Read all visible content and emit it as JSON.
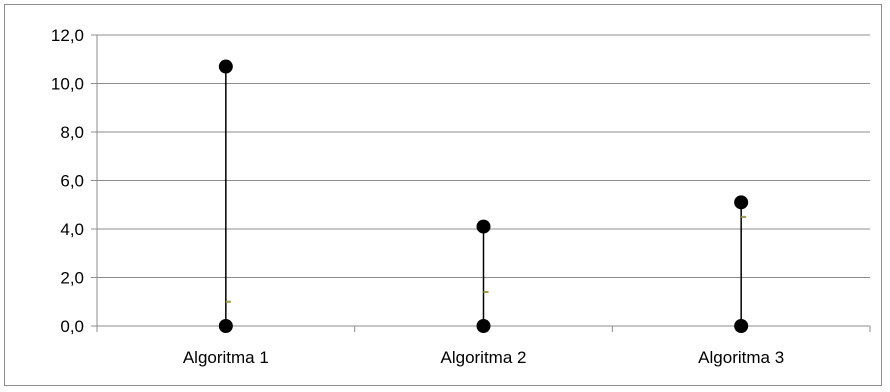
{
  "chart_data": {
    "type": "high-low",
    "title": "",
    "xlabel": "",
    "ylabel": "",
    "categories": [
      "Algoritma 1",
      "Algoritma 2",
      "Algoritma 3"
    ],
    "series": [
      {
        "values": [
          10.7,
          4.1,
          5.1
        ]
      },
      {
        "values": [
          0.0,
          0.0,
          0.0
        ]
      },
      {
        "values": [
          1.0,
          1.4,
          4.5
        ]
      }
    ],
    "ylim": [
      0,
      12
    ],
    "yticks": [
      "0,0",
      "2,0",
      "4,0",
      "6,0",
      "8,0",
      "10,0",
      "12,0"
    ],
    "grid": true,
    "legend": "none",
    "colors": {
      "marker": "#000000",
      "line": "#000000",
      "mid_marker": "#9b9b4a",
      "grid": "#8c8c8c",
      "axis": "#8c8c8c"
    }
  }
}
